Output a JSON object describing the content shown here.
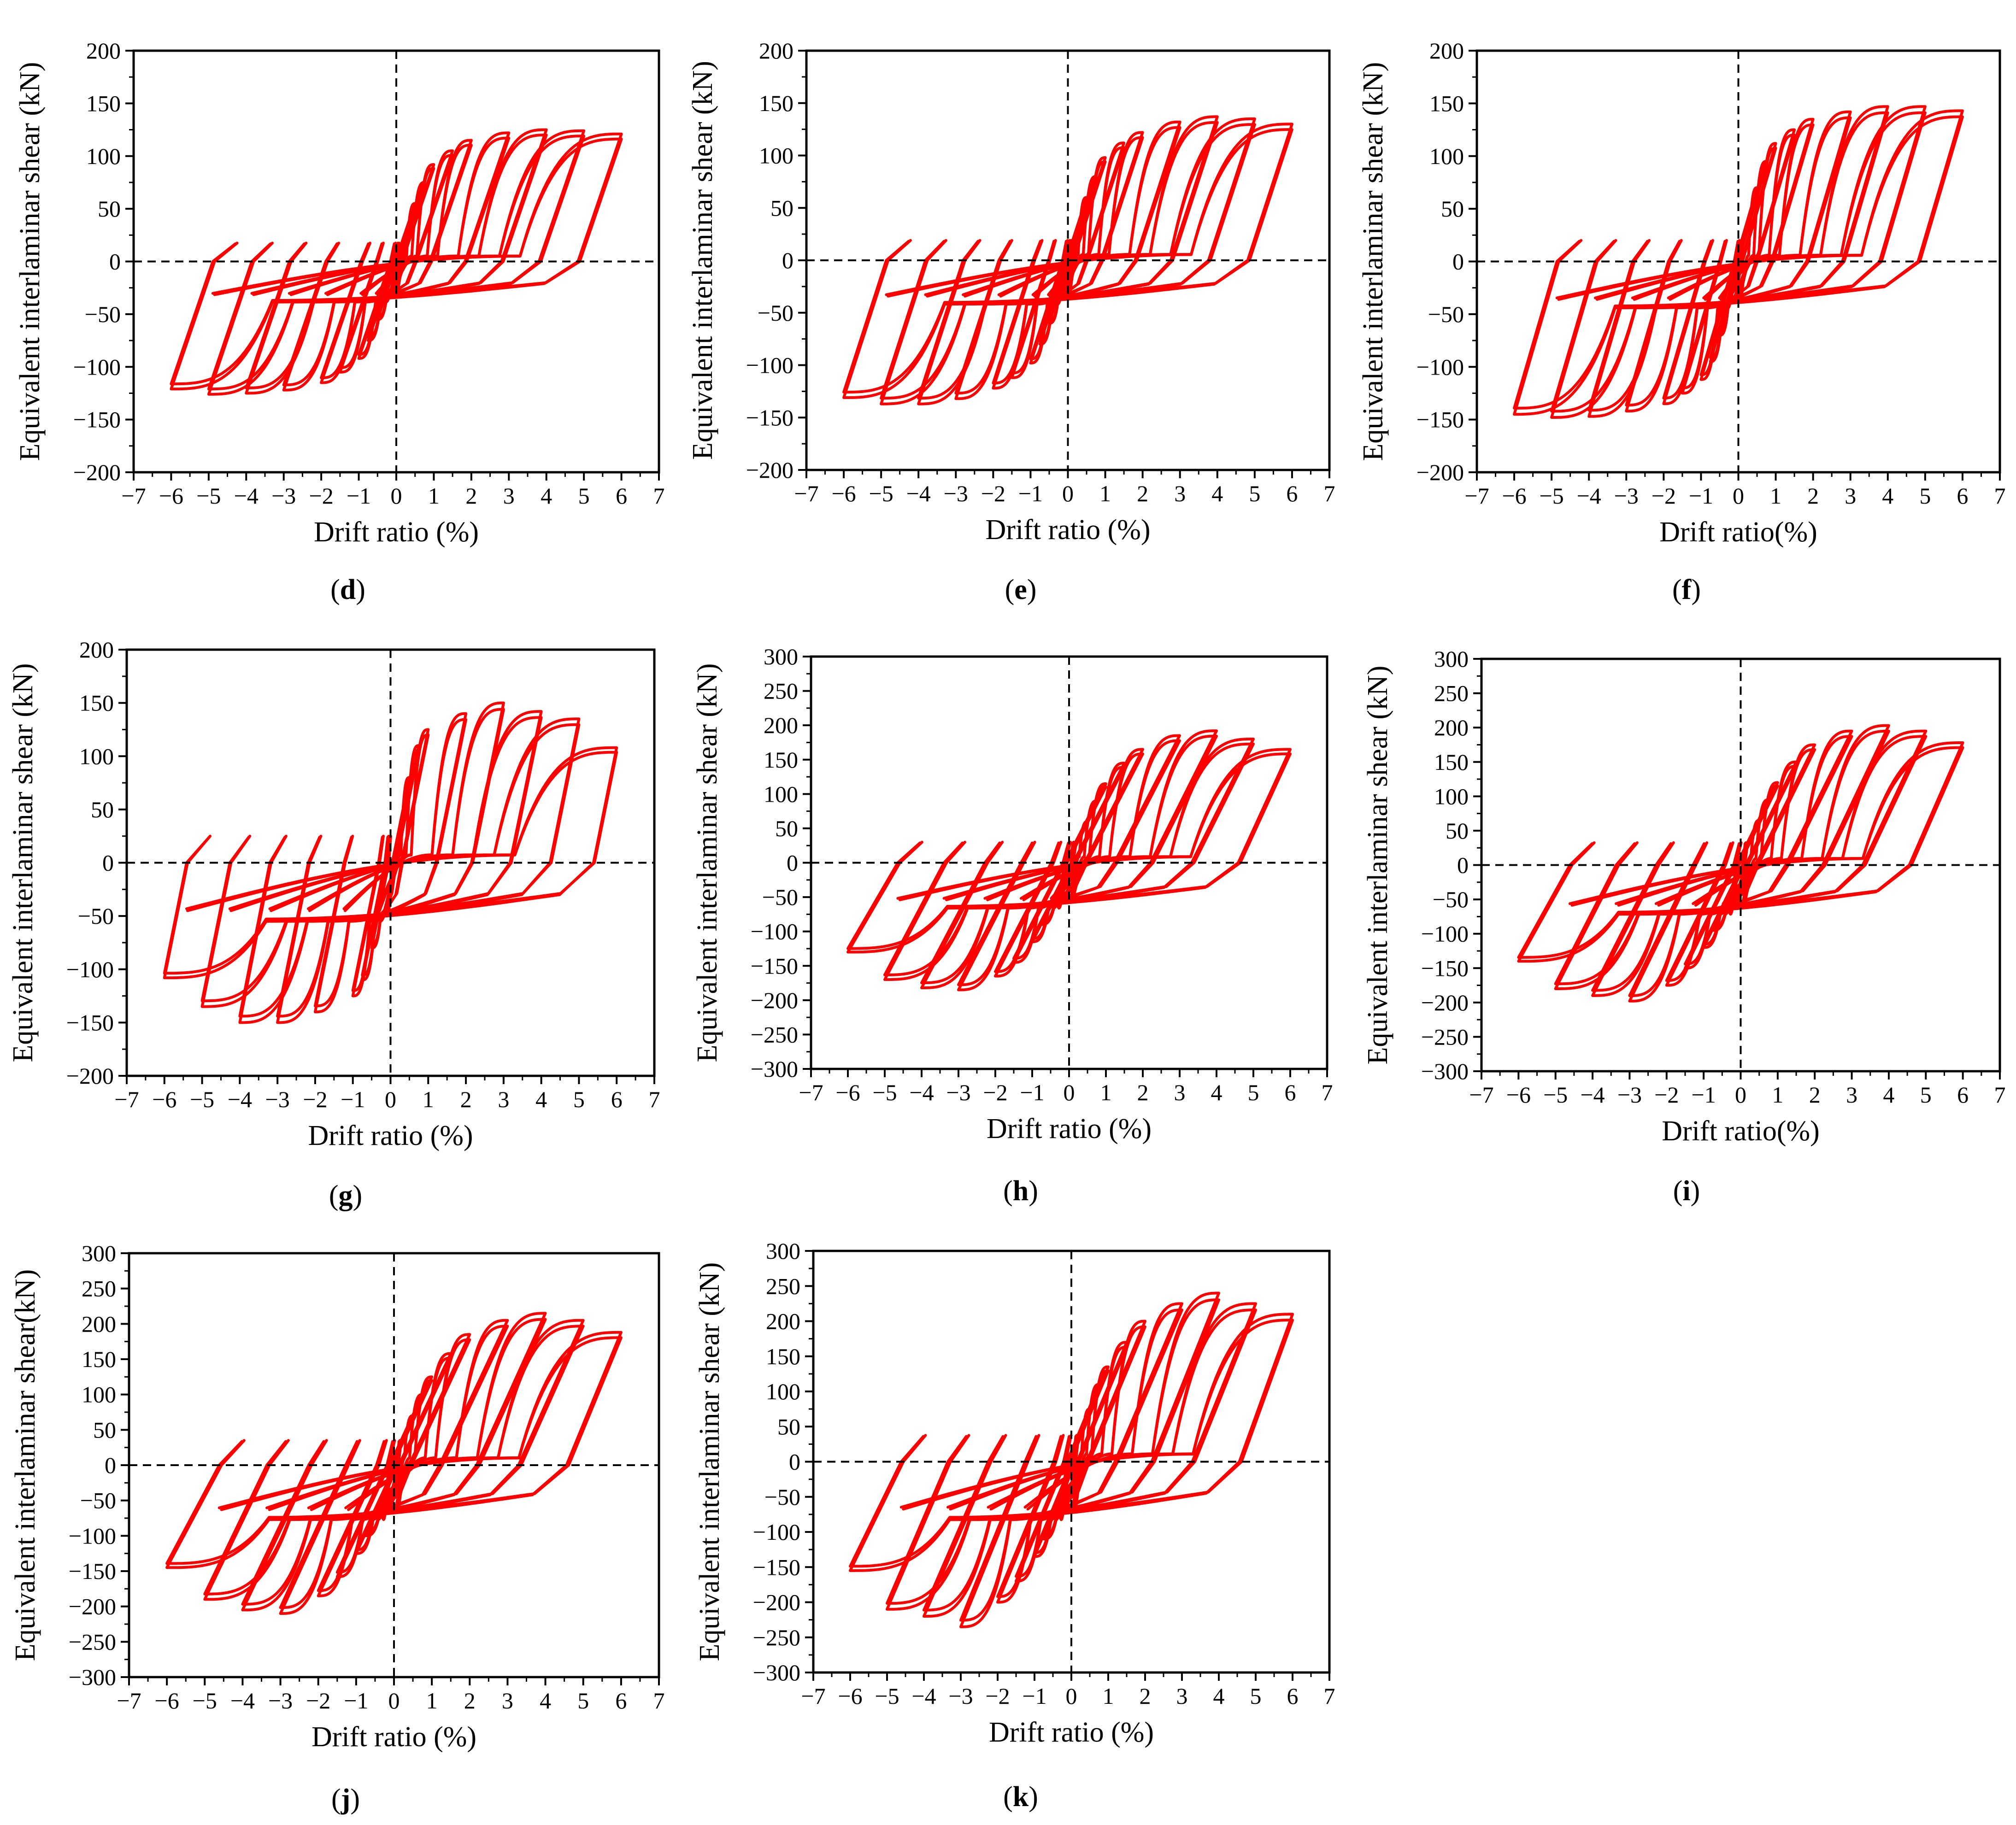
{
  "figure": {
    "background": "#ffffff",
    "curve_color": "#ff0000",
    "axis_color": "#000000"
  },
  "chart_data": [
    {
      "panel": "d",
      "type": "line",
      "title": "",
      "xlabel": "Drift ratio (%)",
      "ylabel": "Equivalent interlaminar shear (kN)",
      "xlim": [
        -7,
        7
      ],
      "ylim": [
        -200,
        200
      ],
      "xticks": [
        -7,
        -6,
        -5,
        -4,
        -3,
        -2,
        -1,
        0,
        1,
        2,
        3,
        4,
        5,
        6,
        7
      ],
      "yticks": [
        -200,
        -150,
        -100,
        -50,
        0,
        50,
        100,
        150,
        200
      ],
      "reference_lines": {
        "x": 0,
        "y": 0,
        "style": "dashed"
      },
      "series": [
        {
          "name": "Hysteresis loop",
          "color": "#ff0000",
          "amplitudes": [
            0.5,
            0.75,
            1,
            1.5,
            2,
            3,
            4,
            5,
            6
          ],
          "peak_pos": [
            55,
            75,
            92,
            105,
            115,
            122,
            125,
            124,
            121
          ],
          "peak_neg": [
            -55,
            -75,
            -92,
            -105,
            -115,
            -122,
            -125,
            -126,
            -121
          ],
          "pinch_level": 35,
          "reload_slope": 95
        }
      ]
    },
    {
      "panel": "e",
      "type": "line",
      "title": "",
      "xlabel": "Drift ratio (%)",
      "ylabel": "Equivalent interlaminar shear (kN)",
      "xlim": [
        -7,
        7
      ],
      "ylim": [
        -200,
        200
      ],
      "xticks": [
        -7,
        -6,
        -5,
        -4,
        -3,
        -2,
        -1,
        0,
        1,
        2,
        3,
        4,
        5,
        6,
        7
      ],
      "yticks": [
        -200,
        -150,
        -100,
        -50,
        0,
        50,
        100,
        150,
        200
      ],
      "reference_lines": {
        "x": 0,
        "y": 0,
        "style": "dashed"
      },
      "series": [
        {
          "name": "Hysteresis loop",
          "color": "#ff0000",
          "amplitudes": [
            0.5,
            0.75,
            1,
            1.5,
            2,
            3,
            4,
            5,
            6
          ],
          "peak_pos": [
            60,
            80,
            98,
            112,
            122,
            132,
            137,
            135,
            130
          ],
          "peak_neg": [
            -60,
            -80,
            -98,
            -112,
            -122,
            -132,
            -137,
            -137,
            -131
          ],
          "pinch_level": 38,
          "reload_slope": 100
        }
      ]
    },
    {
      "panel": "f",
      "type": "line",
      "title": "",
      "xlabel": "Drift ratio(%)",
      "ylabel": "Equivalent interlaminar shear (kN)",
      "xlim": [
        -7,
        7
      ],
      "ylim": [
        -200,
        200
      ],
      "xticks": [
        -7,
        -6,
        -5,
        -4,
        -3,
        -2,
        -1,
        0,
        1,
        2,
        3,
        4,
        5,
        6,
        7
      ],
      "yticks": [
        -200,
        -150,
        -100,
        -50,
        0,
        50,
        100,
        150,
        200
      ],
      "reference_lines": {
        "x": 0,
        "y": 0,
        "style": "dashed"
      },
      "series": [
        {
          "name": "Hysteresis loop",
          "color": "#ff0000",
          "amplitudes": [
            0.5,
            0.75,
            1,
            1.5,
            2,
            3,
            4,
            5,
            6
          ],
          "peak_pos": [
            70,
            95,
            112,
            125,
            135,
            142,
            147,
            147,
            143
          ],
          "peak_neg": [
            -70,
            -95,
            -112,
            -125,
            -135,
            -142,
            -147,
            -148,
            -145
          ],
          "pinch_level": 40,
          "reload_slope": 110
        }
      ]
    },
    {
      "panel": "g",
      "type": "line",
      "title": "",
      "xlabel": "Drift ratio (%)",
      "ylabel": "Equivalent interlaminar shear  (kN)",
      "xlim": [
        -7,
        7
      ],
      "ylim": [
        -200,
        200
      ],
      "xticks": [
        -7,
        -6,
        -5,
        -4,
        -3,
        -2,
        -1,
        0,
        1,
        2,
        3,
        4,
        5,
        6,
        7
      ],
      "yticks": [
        -200,
        -150,
        -100,
        -50,
        0,
        50,
        100,
        150,
        200
      ],
      "reference_lines": {
        "x": 0,
        "y": 0,
        "style": "dashed"
      },
      "series": [
        {
          "name": "Hysteresis loop",
          "color": "#ff0000",
          "amplitudes": [
            0.5,
            0.75,
            1,
            2,
            3,
            4,
            5,
            6
          ],
          "peak_pos": [
            80,
            110,
            125,
            140,
            150,
            142,
            135,
            108
          ],
          "peak_neg": [
            -80,
            -110,
            -125,
            -140,
            -150,
            -150,
            -135,
            -108
          ],
          "pinch_level": 50,
          "reload_slope": 160
        }
      ]
    },
    {
      "panel": "h",
      "type": "line",
      "title": "",
      "xlabel": "Drift ratio (%)",
      "ylabel": "Equivalent interlaminar shear (kN)",
      "xlim": [
        -7,
        7
      ],
      "ylim": [
        -300,
        300
      ],
      "xticks": [
        -7,
        -6,
        -5,
        -4,
        -3,
        -2,
        -1,
        0,
        1,
        2,
        3,
        4,
        5,
        6,
        7
      ],
      "yticks": [
        -300,
        -250,
        -200,
        -150,
        -100,
        -50,
        0,
        50,
        100,
        150,
        200,
        250,
        300
      ],
      "reference_lines": {
        "x": 0,
        "y": 0,
        "style": "dashed"
      },
      "series": [
        {
          "name": "Hysteresis loop",
          "color": "#ff0000",
          "amplitudes": [
            0.5,
            0.75,
            1,
            1.5,
            2,
            3,
            4,
            5,
            6
          ],
          "peak_pos": [
            60,
            90,
            115,
            145,
            165,
            185,
            192,
            180,
            165
          ],
          "peak_neg": [
            -60,
            -90,
            -115,
            -145,
            -165,
            -185,
            -182,
            -170,
            -130
          ],
          "pinch_level": 60,
          "reload_slope": 95
        }
      ]
    },
    {
      "panel": "i",
      "type": "line",
      "title": "",
      "xlabel": "Drift ratio(%)",
      "ylabel": "Equivalent interlaminar shear (kN)",
      "xlim": [
        -7,
        7
      ],
      "ylim": [
        -300,
        300
      ],
      "xticks": [
        -7,
        -6,
        -5,
        -4,
        -3,
        -2,
        -1,
        0,
        1,
        2,
        3,
        4,
        5,
        6,
        7
      ],
      "yticks": [
        -300,
        -250,
        -200,
        -150,
        -100,
        -50,
        0,
        50,
        100,
        150,
        200,
        250,
        300
      ],
      "reference_lines": {
        "x": 0,
        "y": 0,
        "style": "dashed"
      },
      "series": [
        {
          "name": "Hysteresis loop",
          "color": "#ff0000",
          "amplitudes": [
            0.5,
            0.75,
            1,
            1.5,
            2,
            3,
            4,
            5,
            6
          ],
          "peak_pos": [
            65,
            95,
            120,
            150,
            175,
            195,
            203,
            195,
            178
          ],
          "peak_neg": [
            -65,
            -95,
            -120,
            -150,
            -175,
            -198,
            -190,
            -180,
            -140
          ],
          "pinch_level": 65,
          "reload_slope": 100
        }
      ]
    },
    {
      "panel": "j",
      "type": "line",
      "title": "",
      "xlabel": "Drift ratio (%)",
      "ylabel": "Equivalent interlaminar shear(kN)",
      "xlim": [
        -7,
        7
      ],
      "ylim": [
        -300,
        300
      ],
      "xticks": [
        -7,
        -6,
        -5,
        -4,
        -3,
        -2,
        -1,
        0,
        1,
        2,
        3,
        4,
        5,
        6,
        7
      ],
      "yticks": [
        -300,
        -250,
        -200,
        -150,
        -100,
        -50,
        0,
        50,
        100,
        150,
        200,
        250,
        300
      ],
      "reference_lines": {
        "x": 0,
        "y": 0,
        "style": "dashed"
      },
      "series": [
        {
          "name": "Hysteresis loop",
          "color": "#ff0000",
          "amplitudes": [
            0.5,
            0.75,
            1,
            1.5,
            2,
            3,
            4,
            5,
            6
          ],
          "peak_pos": [
            70,
            100,
            125,
            158,
            185,
            205,
            215,
            205,
            188
          ],
          "peak_neg": [
            -70,
            -100,
            -125,
            -158,
            -185,
            -210,
            -205,
            -190,
            -145
          ],
          "pinch_level": 70,
          "reload_slope": 105
        }
      ]
    },
    {
      "panel": "k",
      "type": "line",
      "title": "",
      "xlabel": "Drift ratio (%)",
      "ylabel": "Equivalent interlaminar shear (kN)",
      "xlim": [
        -7,
        7
      ],
      "ylim": [
        -300,
        300
      ],
      "xticks": [
        -7,
        -6,
        -5,
        -4,
        -3,
        -2,
        -1,
        0,
        1,
        2,
        3,
        4,
        5,
        6,
        7
      ],
      "yticks": [
        -300,
        -250,
        -200,
        -150,
        -100,
        -50,
        0,
        50,
        100,
        150,
        200,
        250,
        300
      ],
      "reference_lines": {
        "x": 0,
        "y": 0,
        "style": "dashed"
      },
      "series": [
        {
          "name": "Hysteresis loop",
          "color": "#ff0000",
          "amplitudes": [
            0.5,
            0.75,
            1,
            1.5,
            2,
            3,
            4,
            5,
            6
          ],
          "peak_pos": [
            75,
            110,
            135,
            170,
            200,
            225,
            240,
            225,
            210
          ],
          "peak_neg": [
            -75,
            -110,
            -135,
            -170,
            -200,
            -235,
            -220,
            -210,
            -155
          ],
          "pinch_level": 75,
          "reload_slope": 115
        }
      ]
    }
  ]
}
